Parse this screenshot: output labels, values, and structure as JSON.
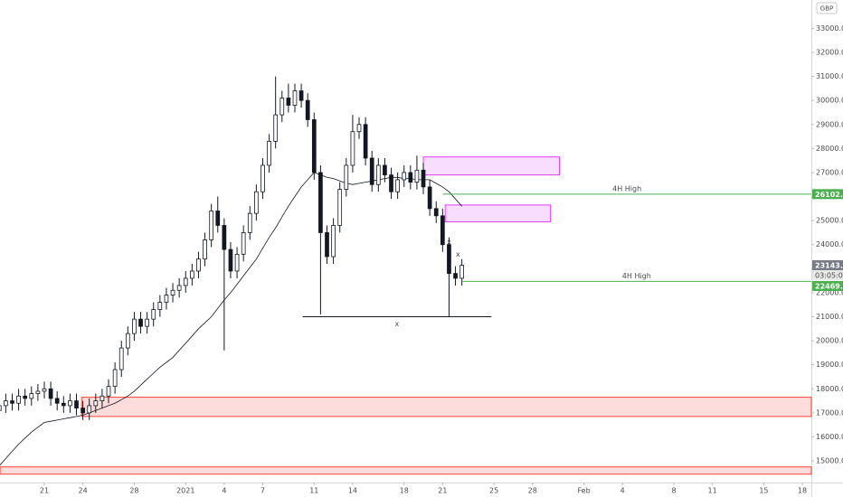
{
  "chart_data": {
    "type": "candlestick",
    "currency": "GBP",
    "countdown": "03:05:09",
    "last_price": {
      "value": 23143.46,
      "label": "23143.46"
    },
    "xlim": [
      -3.45,
      59.7
    ],
    "ylim": [
      14100,
      34180
    ],
    "grid": false,
    "up_color": "#ffffff",
    "down_color": "#131722",
    "ma_color": "#131722",
    "xticks": [
      {
        "value": 0,
        "label": "21"
      },
      {
        "value": 3,
        "label": "24"
      },
      {
        "value": 7,
        "label": "28"
      },
      {
        "value": 11,
        "label": "2021"
      },
      {
        "value": 14,
        "label": "4"
      },
      {
        "value": 17,
        "label": "7"
      },
      {
        "value": 21,
        "label": "11"
      },
      {
        "value": 24,
        "label": "14"
      },
      {
        "value": 28,
        "label": "18"
      },
      {
        "value": 31,
        "label": "21"
      },
      {
        "value": 35,
        "label": "25"
      },
      {
        "value": 38,
        "label": "28"
      },
      {
        "value": 42,
        "label": "Feb"
      },
      {
        "value": 45,
        "label": "4"
      },
      {
        "value": 49,
        "label": "8"
      },
      {
        "value": 52,
        "label": "11"
      },
      {
        "value": 56,
        "label": "15"
      },
      {
        "value": 59,
        "label": "18"
      }
    ],
    "yticks": [
      {
        "value": 15000,
        "label": "15000.00"
      },
      {
        "value": 16000,
        "label": "16000.00"
      },
      {
        "value": 17000,
        "label": "17000.00"
      },
      {
        "value": 18000,
        "label": "18000.00"
      },
      {
        "value": 19000,
        "label": "19000.00"
      },
      {
        "value": 20000,
        "label": "20000.00"
      },
      {
        "value": 21000,
        "label": "21000.00"
      },
      {
        "value": 22000,
        "label": "22000.00"
      },
      {
        "value": 23000,
        "label": "23000.00"
      },
      {
        "value": 24000,
        "label": "24000.00"
      },
      {
        "value": 25000,
        "label": "25000.00"
      },
      {
        "value": 26000,
        "label": "26000.00"
      },
      {
        "value": 27000,
        "label": "27000.00"
      },
      {
        "value": 28000,
        "label": "28000.00"
      },
      {
        "value": 29000,
        "label": "29000.00"
      },
      {
        "value": 30000,
        "label": "30000.00"
      },
      {
        "value": 31000,
        "label": "31000.00"
      },
      {
        "value": 32000,
        "label": "32000.00"
      },
      {
        "value": 33000,
        "label": "33000.00"
      }
    ],
    "x": [
      -3.5,
      -3,
      -2.5,
      -2,
      -1.5,
      -1,
      -0.5,
      0,
      0.5,
      1,
      1.5,
      2,
      2.5,
      3,
      3.5,
      4,
      4.5,
      5,
      5.5,
      6,
      6.5,
      7,
      7.5,
      8,
      8.5,
      9,
      9.5,
      10,
      10.5,
      11,
      11.5,
      12,
      12.5,
      13,
      13.5,
      14,
      14.5,
      15,
      15.5,
      16,
      16.5,
      17,
      17.5,
      18,
      18.5,
      19,
      19.5,
      20,
      20.5,
      21,
      21.5,
      22,
      22.5,
      23,
      23.5,
      24,
      24.5,
      25,
      25.5,
      26,
      26.5,
      27,
      27.5,
      28,
      28.5,
      29,
      29.5,
      30,
      30.5,
      31,
      31.5,
      32,
      32.5
    ],
    "open": [
      17100,
      17300,
      17500,
      17400,
      17700,
      17600,
      17800,
      17900,
      18000,
      17600,
      17400,
      17300,
      17500,
      17200,
      17000,
      17300,
      17500,
      17700,
      18100,
      18800,
      19700,
      20300,
      20900,
      20600,
      20900,
      21300,
      21600,
      21900,
      22100,
      22300,
      22600,
      22900,
      23400,
      24200,
      25400,
      24800,
      23800,
      22900,
      23600,
      24500,
      25300,
      26200,
      27300,
      28300,
      29400,
      30100,
      29800,
      30400,
      30000,
      29200,
      27000,
      24500,
      23500,
      24800,
      26300,
      27300,
      28700,
      29000,
      27600,
      26500,
      27300,
      26900,
      26200,
      26700,
      27000,
      26600,
      27100,
      26400,
      25500,
      25200,
      24000,
      22800,
      22600
    ],
    "high": [
      17600,
      17800,
      17800,
      18000,
      18000,
      18100,
      18200,
      18300,
      18300,
      17900,
      17700,
      17800,
      17800,
      17500,
      17600,
      17800,
      18000,
      18400,
      19100,
      20000,
      20600,
      21200,
      21200,
      21200,
      21600,
      21900,
      22200,
      22400,
      22600,
      22900,
      23200,
      23700,
      24500,
      25700,
      26000,
      25100,
      24100,
      23900,
      24800,
      25600,
      26500,
      27600,
      28600,
      31000,
      30400,
      30700,
      30700,
      30700,
      30300,
      29500,
      27300,
      24800,
      25100,
      26600,
      27600,
      29400,
      29300,
      29300,
      27900,
      27600,
      27600,
      27200,
      27000,
      27300,
      27300,
      27700,
      27400,
      26700,
      25800,
      25500,
      24300,
      23100,
      23400
    ],
    "low": [
      16800,
      17000,
      17100,
      17100,
      17300,
      17300,
      17500,
      17600,
      17300,
      17100,
      17000,
      17000,
      16900,
      16700,
      16700,
      17000,
      17200,
      17400,
      17800,
      18500,
      19400,
      20000,
      20300,
      20300,
      20600,
      21000,
      21300,
      21600,
      21800,
      22000,
      22300,
      22600,
      23100,
      23900,
      24500,
      19600,
      22600,
      22600,
      23300,
      24200,
      25000,
      25900,
      27000,
      28000,
      29100,
      29500,
      29500,
      29700,
      28900,
      26700,
      21100,
      23200,
      23200,
      24500,
      26000,
      27000,
      28400,
      27300,
      26200,
      26200,
      26600,
      25900,
      25900,
      26400,
      26300,
      26300,
      26100,
      25200,
      24900,
      23700,
      21000,
      22300,
      22300
    ],
    "close": [
      17300,
      17500,
      17400,
      17700,
      17600,
      17800,
      17900,
      18000,
      17600,
      17400,
      17300,
      17500,
      17200,
      17000,
      17300,
      17500,
      17700,
      18100,
      18800,
      19700,
      20300,
      20900,
      20600,
      20900,
      21300,
      21600,
      21900,
      22100,
      22300,
      22600,
      22900,
      23400,
      24200,
      25400,
      24800,
      23800,
      22900,
      23600,
      24500,
      25300,
      26200,
      27300,
      28300,
      29400,
      30100,
      29800,
      30400,
      30000,
      29200,
      27000,
      24500,
      23500,
      24800,
      26300,
      27300,
      28700,
      29000,
      27600,
      26500,
      27300,
      26900,
      26200,
      26700,
      27000,
      26600,
      27100,
      26400,
      25500,
      25200,
      24000,
      22800,
      22600,
      23140
    ],
    "ma": [
      14800,
      15100,
      15400,
      15700,
      15950,
      16200,
      16400,
      16600,
      16650,
      16700,
      16750,
      16800,
      16850,
      16900,
      17000,
      17100,
      17200,
      17300,
      17400,
      17550,
      17700,
      17900,
      18150,
      18400,
      18650,
      18900,
      19100,
      19300,
      19600,
      19900,
      20200,
      20500,
      20750,
      21000,
      21350,
      21700,
      22000,
      22350,
      22700,
      23050,
      23400,
      23850,
      24300,
      24700,
      25150,
      25600,
      26000,
      26400,
      26700,
      27000,
      26900,
      26800,
      26750,
      26650,
      26550,
      26500,
      26550,
      26600,
      26650,
      26700,
      26750,
      26800,
      26800,
      26750,
      26750,
      26700,
      26700,
      26700,
      26550,
      26400,
      26200,
      25900,
      25600
    ],
    "zones": [
      {
        "y": [
          26900,
          27650
        ],
        "x": [
          29.5,
          40.1
        ],
        "color": "#e040fb"
      },
      {
        "y": [
          24950,
          25650
        ],
        "x": [
          31.2,
          39.4
        ],
        "color": "#e040fb"
      },
      {
        "y": [
          16850,
          17650
        ],
        "x": [
          2.9
        ],
        "color": "#f44336",
        "extend_right": true
      },
      {
        "y": [
          14450,
          14750
        ],
        "x": [
          -3.45
        ],
        "color": "#f44336",
        "extend_right": true
      }
    ],
    "levels": [
      {
        "label": "4H High",
        "value": 26102,
        "price_label": "26102.00",
        "x": 31,
        "color": "#4caf50"
      },
      {
        "label": "4H High",
        "value": 22469.75,
        "price_label": "22469.75",
        "x": 32.5,
        "color": "#4caf50"
      }
    ],
    "ranges": [
      {
        "value": 21000,
        "x": [
          20.1,
          34.8
        ],
        "label": "x"
      }
    ],
    "marks": [
      {
        "label": "x",
        "x": 31.5,
        "y": 24100
      },
      {
        "label": "x",
        "x": 32.2,
        "y": 23600
      }
    ]
  }
}
